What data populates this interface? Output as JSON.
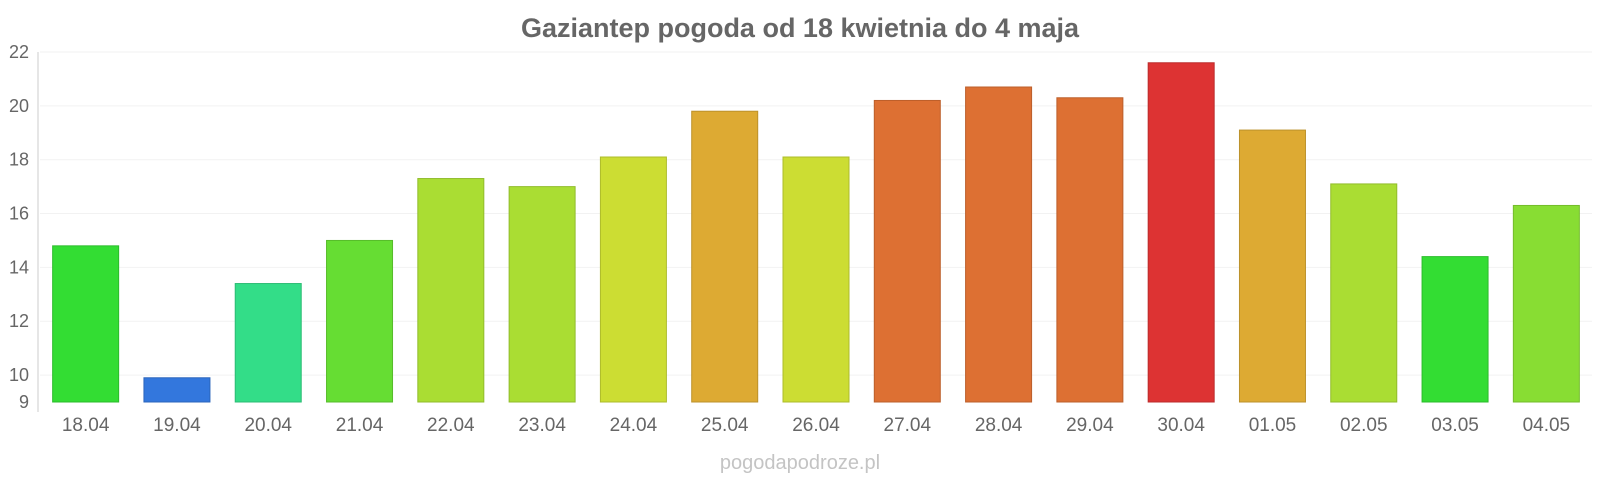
{
  "chart_data": {
    "type": "bar",
    "title": "Gaziantep pogoda od 18 kwietnia do 4 maja",
    "xlabel": "",
    "ylabel": "",
    "ylim": [
      9,
      22
    ],
    "yticks": [
      9,
      10,
      12,
      14,
      16,
      18,
      20,
      22
    ],
    "grid": true,
    "legend": "none",
    "categories": [
      "18.04",
      "19.04",
      "20.04",
      "21.04",
      "22.04",
      "23.04",
      "24.04",
      "25.04",
      "26.04",
      "27.04",
      "28.04",
      "29.04",
      "30.04",
      "01.05",
      "02.05",
      "03.05",
      "04.05"
    ],
    "series": [
      {
        "values": [
          14.8,
          9.9,
          13.4,
          15.0,
          17.3,
          17.0,
          18.1,
          19.8,
          18.1,
          20.2,
          20.7,
          20.3,
          21.6,
          19.1,
          17.1,
          14.4,
          16.3
        ],
        "colors": [
          "#33dd33",
          "#3377dd",
          "#33dd88",
          "#66dd33",
          "#aadd33",
          "#aadd33",
          "#ccdd33",
          "#ddaa33",
          "#ccdd33",
          "#dd7033",
          "#dd7033",
          "#dd7033",
          "#dd3333",
          "#ddaa33",
          "#aadd33",
          "#33dd33",
          "#88dd33"
        ]
      }
    ]
  },
  "credit": "pogodapodroze.pl"
}
